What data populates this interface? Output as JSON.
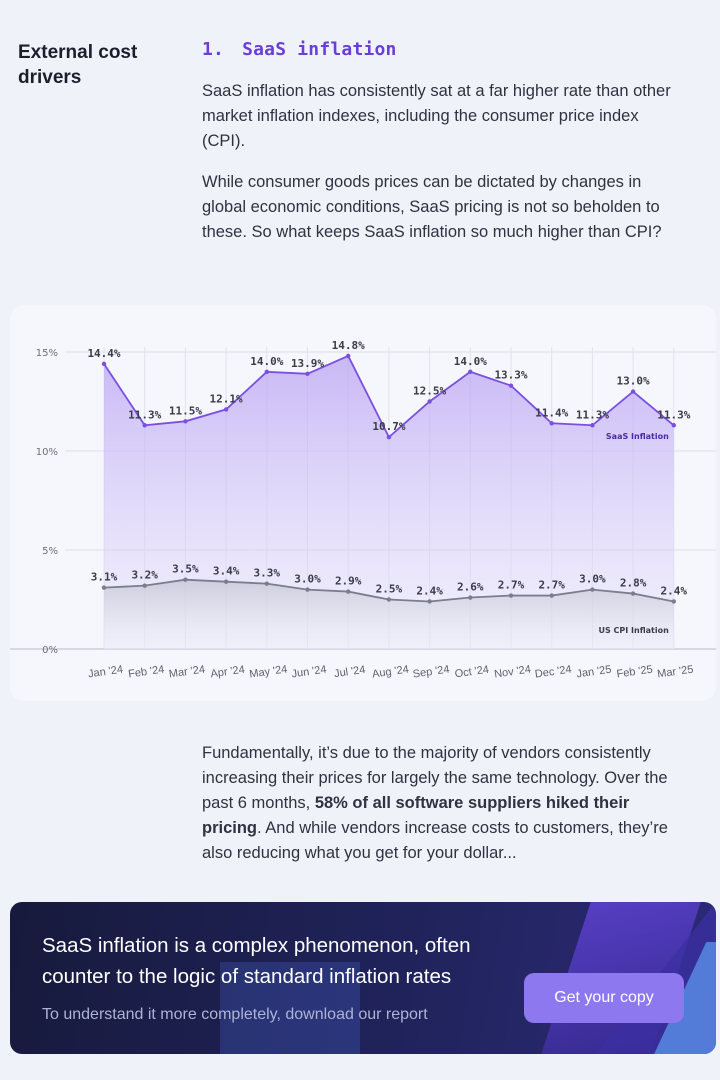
{
  "section": {
    "side_heading": "External cost drivers",
    "number": "1.",
    "title": "SaaS inflation",
    "paragraph1": "SaaS inflation has consistently sat at a far higher rate than other market inflation indexes, including the consumer price index (CPI).",
    "paragraph2": "While consumer goods prices can be dictated by changes in global economic conditions, SaaS pricing is not so beholden to these. So what keeps SaaS inflation so much higher than CPI?",
    "paragraph3_before": "Fundamentally, it’s due to the majority of vendors consistently increasing their prices for largely the same technology. Over the past 6 months, ",
    "paragraph3_bold": "58% of all software suppliers hiked their pricing",
    "paragraph3_after": ".  And while vendors increase costs to customers, they’re also reducing what you get for your dollar..."
  },
  "colors": {
    "saas": "#7b4fe0",
    "cpi": "#7a7d8e",
    "accent": "#6a3fd6"
  },
  "chart_data": {
    "type": "line",
    "categories": [
      "Jan '24",
      "Feb '24",
      "Mar '24",
      "Apr '24",
      "May '24",
      "Jun '24",
      "Jul '24",
      "Aug '24",
      "Sep '24",
      "Oct '24",
      "Nov '24",
      "Dec '24",
      "Jan '25",
      "Feb '25",
      "Mar '25"
    ],
    "series": [
      {
        "name": "SaaS Inflation",
        "values": [
          14.4,
          11.3,
          11.5,
          12.1,
          14.0,
          13.9,
          14.8,
          10.7,
          12.5,
          14.0,
          13.3,
          11.4,
          11.3,
          13.0,
          11.3
        ],
        "labels": [
          "14.4%",
          "11.3%",
          "11.5%",
          "12.1%",
          "14.0%",
          "13.9%",
          "14.8%",
          "10.7%",
          "12.5%",
          "14.0%",
          "13.3%",
          "11.4%",
          "11.3%",
          "13.0%",
          "11.3%"
        ]
      },
      {
        "name": "US CPI Inflation",
        "values": [
          3.1,
          3.2,
          3.5,
          3.4,
          3.3,
          3.0,
          2.9,
          2.5,
          2.4,
          2.6,
          2.7,
          2.7,
          3.0,
          2.8,
          2.4
        ],
        "labels": [
          "3.1%",
          "3.2%",
          "3.5%",
          "3.4%",
          "3.3%",
          "3.0%",
          "2.9%",
          "2.5%",
          "2.4%",
          "2.6%",
          "2.7%",
          "2.7%",
          "3.0%",
          "2.8%",
          "2.4%"
        ]
      }
    ],
    "y_ticks": [
      "0%",
      "5%",
      "10%",
      "15%"
    ],
    "y_tick_values": [
      0,
      5,
      10,
      15
    ],
    "ylim": [
      0,
      15
    ],
    "grid": true,
    "legend": "inline labels on series"
  },
  "cta": {
    "heading": "SaaS inflation is a complex phenomenon, often counter to the logic of standard inflation rates",
    "subtext": "To understand it more completely, download our report",
    "button_label": "Get your copy"
  }
}
